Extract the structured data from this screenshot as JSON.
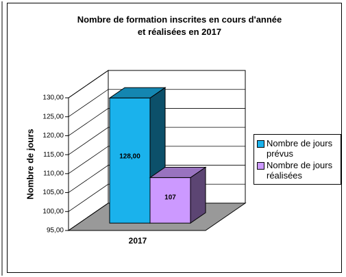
{
  "chart_data": {
    "type": "bar3d",
    "title": "Nombre de formation inscrites en cours d'année et réalisées en 2017",
    "y_label": "Nombre de jours",
    "categories": [
      "2017"
    ],
    "series": [
      {
        "name": "Nombre de jours prévus",
        "color": "#1ab2ec",
        "values": [
          128
        ],
        "value_labels": [
          "128,00"
        ]
      },
      {
        "name": "Nombre de jours réalisées",
        "color": "#cc99ff",
        "values": [
          107
        ],
        "value_labels": [
          "107"
        ]
      }
    ],
    "ylim": [
      95,
      130
    ],
    "yticks": [
      {
        "value": 95,
        "label": "95,00"
      },
      {
        "value": 100,
        "label": "100,00"
      },
      {
        "value": 105,
        "label": "105,00"
      },
      {
        "value": 110,
        "label": "110,00"
      },
      {
        "value": 115,
        "label": "115,00"
      },
      {
        "value": 120,
        "label": "120,00"
      },
      {
        "value": 125,
        "label": "125,00"
      },
      {
        "value": 130,
        "label": "130,00"
      }
    ],
    "grid": true,
    "legend": "right"
  }
}
